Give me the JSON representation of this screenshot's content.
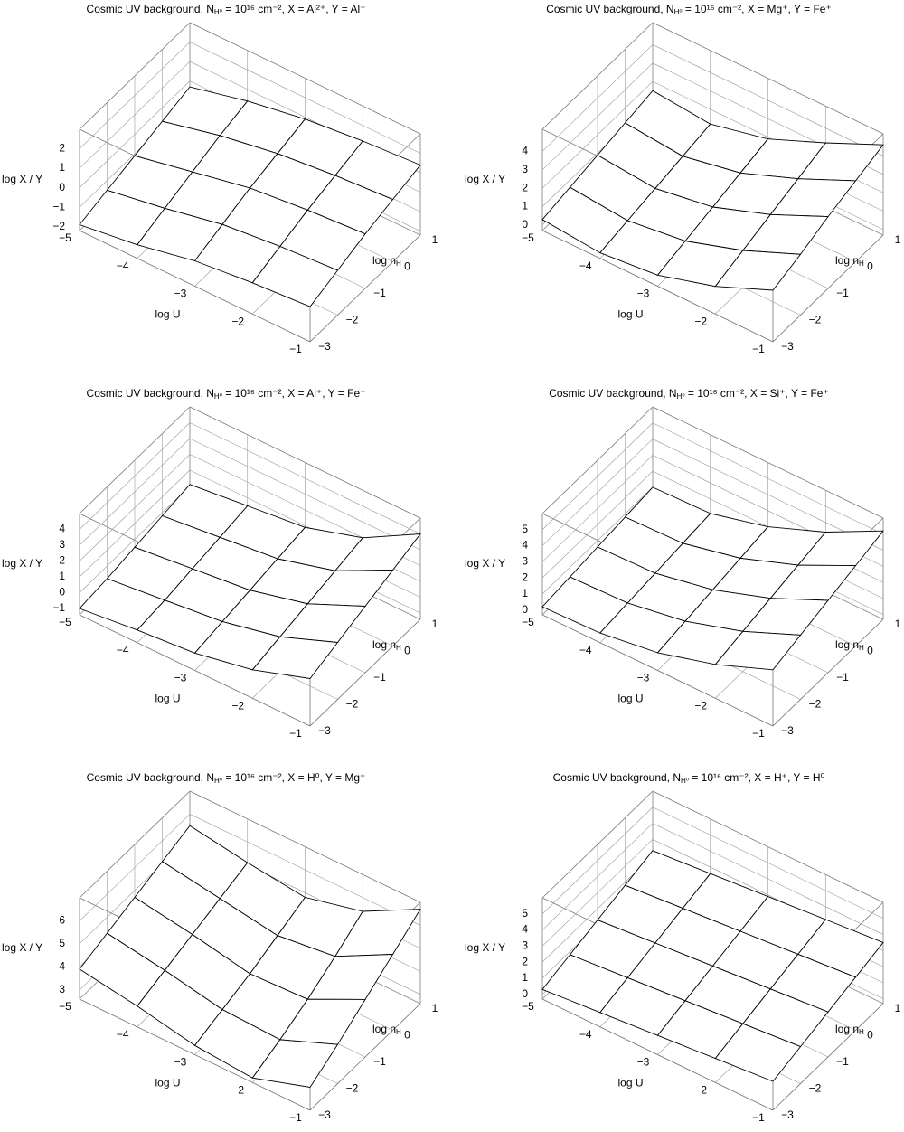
{
  "chart_data": [
    {
      "type": "surface",
      "title": [
        {
          "text": "Cosmic UV background, N"
        },
        {
          "text": "H⁰",
          "sub": true
        },
        {
          "text": " = 10¹⁶ cm⁻², X = Al²⁺, Y = Al⁺"
        }
      ],
      "xlabel": "log U",
      "ylabel": [
        {
          "text": "log n"
        },
        {
          "text": "H",
          "sub": true
        }
      ],
      "zlabel": "log X / Y",
      "x": [
        -5,
        -4,
        -3,
        -2,
        -1
      ],
      "y": [
        -3,
        -2,
        -1,
        0,
        1
      ],
      "z": [
        [
          -1.9,
          -1.5,
          -1.1,
          -0.7,
          -0.3
        ],
        [
          -1.5,
          -1.0,
          -0.5,
          0.0,
          0.4
        ],
        [
          -0.9,
          -0.4,
          0.1,
          0.5,
          0.9
        ],
        [
          -0.6,
          -0.1,
          0.4,
          0.8,
          1.2
        ],
        [
          -0.4,
          0.1,
          0.6,
          1.0,
          1.4
        ]
      ],
      "xlim": [
        -5,
        -1
      ],
      "ylim": [
        -3,
        1
      ],
      "zlim": [
        -2.2,
        3
      ],
      "xticks": [
        {
          "value": -5,
          "label": "−5"
        },
        {
          "value": -4,
          "label": "−4"
        },
        {
          "value": -3,
          "label": "−3"
        },
        {
          "value": -2,
          "label": "−2"
        },
        {
          "value": -1,
          "label": "−1"
        }
      ],
      "yticks": [
        {
          "value": -3,
          "label": "−3"
        },
        {
          "value": -2,
          "label": "−2"
        },
        {
          "value": -1,
          "label": "−1"
        },
        0,
        1
      ],
      "zticks": [
        {
          "value": -2,
          "label": "−2"
        },
        {
          "value": -1,
          "label": "−1"
        },
        0,
        1,
        2
      ],
      "grid": true,
      "color": "#ffffff"
    },
    {
      "type": "surface",
      "title": [
        {
          "text": "Cosmic UV background, N"
        },
        {
          "text": "H⁰",
          "sub": true
        },
        {
          "text": " = 10¹⁶ cm⁻², X = Mg⁺, Y = Fe⁺"
        }
      ],
      "xlabel": "log U",
      "ylabel": [
        {
          "text": "log n"
        },
        {
          "text": "H",
          "sub": true
        }
      ],
      "zlabel": "log X / Y",
      "x": [
        -5,
        -4,
        -3,
        -2,
        -1
      ],
      "y": [
        -3,
        -2,
        -1,
        0,
        1
      ],
      "z": [
        [
          0.3,
          0.6,
          0.9,
          1.2,
          1.5
        ],
        [
          0.0,
          0.3,
          0.6,
          0.9,
          1.2
        ],
        [
          0.3,
          0.7,
          1.1,
          1.5,
          1.9
        ],
        [
          1.2,
          1.7,
          2.2,
          2.7,
          3.2
        ],
        [
          2.5,
          3.0,
          3.6,
          4.1,
          4.6
        ]
      ],
      "xlim": [
        -5,
        -1
      ],
      "ylim": [
        -3,
        1
      ],
      "zlim": [
        -0.3,
        5.2
      ],
      "xticks": [
        {
          "value": -5,
          "label": "−5"
        },
        {
          "value": -4,
          "label": "−4"
        },
        {
          "value": -3,
          "label": "−3"
        },
        {
          "value": -2,
          "label": "−2"
        },
        {
          "value": -1,
          "label": "−1"
        }
      ],
      "yticks": [
        {
          "value": -3,
          "label": "−3"
        },
        {
          "value": -2,
          "label": "−2"
        },
        {
          "value": -1,
          "label": "−1"
        },
        0,
        1
      ],
      "zticks": [
        0,
        1,
        2,
        3,
        4
      ],
      "grid": true,
      "color": "#ffffff"
    },
    {
      "type": "surface",
      "title": [
        {
          "text": "Cosmic UV background, N"
        },
        {
          "text": "H⁰",
          "sub": true
        },
        {
          "text": " = 10¹⁶ cm⁻², X = Al⁺, Y = Fe⁺"
        }
      ],
      "xlabel": "log U",
      "ylabel": [
        {
          "text": "log n"
        },
        {
          "text": "H",
          "sub": true
        }
      ],
      "zlabel": "log X / Y",
      "x": [
        -5,
        -4,
        -3,
        -2,
        -1
      ],
      "y": [
        -3,
        -2,
        -1,
        0,
        1
      ],
      "z": [
        [
          -1.0,
          -0.8,
          -0.5,
          -0.2,
          0.1
        ],
        [
          -0.6,
          -0.4,
          -0.1,
          0.2,
          0.5
        ],
        [
          -0.3,
          0.0,
          0.3,
          0.6,
          0.9
        ],
        [
          0.4,
          0.8,
          1.2,
          1.6,
          2.0
        ],
        [
          1.6,
          2.2,
          2.8,
          3.4,
          4.0
        ]
      ],
      "xlim": [
        -5,
        -1
      ],
      "ylim": [
        -3,
        1
      ],
      "zlim": [
        -1.4,
        5
      ],
      "xticks": [
        {
          "value": -5,
          "label": "−5"
        },
        {
          "value": -4,
          "label": "−4"
        },
        {
          "value": -3,
          "label": "−3"
        },
        {
          "value": -2,
          "label": "−2"
        },
        {
          "value": -1,
          "label": "−1"
        }
      ],
      "yticks": [
        {
          "value": -3,
          "label": "−3"
        },
        {
          "value": -2,
          "label": "−2"
        },
        {
          "value": -1,
          "label": "−1"
        },
        0,
        1
      ],
      "zticks": [
        {
          "value": -1,
          "label": "−1"
        },
        0,
        1,
        2,
        3,
        4
      ],
      "grid": true,
      "color": "#ffffff"
    },
    {
      "type": "surface",
      "title": [
        {
          "text": "Cosmic UV background, N"
        },
        {
          "text": "H⁰",
          "sub": true
        },
        {
          "text": " = 10¹⁶ cm⁻², X = Si⁺, Y = Fe⁺"
        }
      ],
      "xlabel": "log U",
      "ylabel": [
        {
          "text": "log n"
        },
        {
          "text": "H",
          "sub": true
        }
      ],
      "zlabel": "log X / Y",
      "x": [
        -5,
        -4,
        -3,
        -2,
        -1
      ],
      "y": [
        -3,
        -2,
        -1,
        0,
        1
      ],
      "z": [
        [
          0.2,
          0.4,
          0.6,
          0.8,
          1.0
        ],
        [
          0.3,
          0.5,
          0.7,
          0.9,
          1.1
        ],
        [
          0.8,
          1.1,
          1.4,
          1.7,
          2.0
        ],
        [
          1.8,
          2.2,
          2.6,
          3.0,
          3.4
        ],
        [
          3.2,
          3.7,
          4.2,
          4.7,
          5.2
        ]
      ],
      "xlim": [
        -5,
        -1
      ],
      "ylim": [
        -3,
        1
      ],
      "zlim": [
        -0.3,
        6
      ],
      "xticks": [
        {
          "value": -5,
          "label": "−5"
        },
        {
          "value": -4,
          "label": "−4"
        },
        {
          "value": -3,
          "label": "−3"
        },
        {
          "value": -2,
          "label": "−2"
        },
        {
          "value": -1,
          "label": "−1"
        }
      ],
      "yticks": [
        {
          "value": -3,
          "label": "−3"
        },
        {
          "value": -2,
          "label": "−2"
        },
        {
          "value": -1,
          "label": "−1"
        },
        0,
        1
      ],
      "zticks": [
        0,
        1,
        2,
        3,
        4,
        5
      ],
      "grid": true,
      "color": "#ffffff"
    },
    {
      "type": "surface",
      "title": [
        {
          "text": "Cosmic UV background, N"
        },
        {
          "text": "H⁰",
          "sub": true
        },
        {
          "text": " = 10¹⁶ cm⁻², X = H⁰, Y = Mg⁺"
        }
      ],
      "xlabel": "log U",
      "ylabel": [
        {
          "text": "log n"
        },
        {
          "text": "H",
          "sub": true
        }
      ],
      "zlabel": "log X / Y",
      "x": [
        -5,
        -4,
        -3,
        -2,
        -1
      ],
      "y": [
        -3,
        -2,
        -1,
        0,
        1
      ],
      "z": [
        [
          3.9,
          4.3,
          4.7,
          5.1,
          5.5
        ],
        [
          3.5,
          3.9,
          4.3,
          4.7,
          5.1
        ],
        [
          3.0,
          3.4,
          3.8,
          4.3,
          4.8
        ],
        [
          2.8,
          3.3,
          3.9,
          4.6,
          5.4
        ],
        [
          3.6,
          4.3,
          5.1,
          5.9,
          6.7
        ]
      ],
      "xlim": [
        -5,
        -1
      ],
      "ylim": [
        -3,
        1
      ],
      "zlim": [
        2.6,
        7
      ],
      "xticks": [
        {
          "value": -5,
          "label": "−5"
        },
        {
          "value": -4,
          "label": "−4"
        },
        {
          "value": -3,
          "label": "−3"
        },
        {
          "value": -2,
          "label": "−2"
        },
        {
          "value": -1,
          "label": "−1"
        }
      ],
      "yticks": [
        {
          "value": -3,
          "label": "−3"
        },
        {
          "value": -2,
          "label": "−2"
        },
        {
          "value": -1,
          "label": "−1"
        },
        0,
        1
      ],
      "zticks": [
        3,
        4,
        5,
        6
      ],
      "grid": true,
      "color": "#ffffff"
    },
    {
      "type": "surface",
      "title": [
        {
          "text": "Cosmic UV background, N"
        },
        {
          "text": "H⁰",
          "sub": true
        },
        {
          "text": " = 10¹⁶ cm⁻², X = H⁺, Y = H⁰"
        }
      ],
      "xlabel": "log U",
      "ylabel": [
        {
          "text": "log n"
        },
        {
          "text": "H",
          "sub": true
        }
      ],
      "zlabel": "log X / Y",
      "x": [
        -5,
        -4,
        -3,
        -2,
        -1
      ],
      "y": [
        -3,
        -2,
        -1,
        0,
        1
      ],
      "z": [
        [
          0.3,
          0.8,
          1.3,
          1.8,
          2.3
        ],
        [
          0.6,
          1.1,
          1.6,
          2.1,
          2.6
        ],
        [
          0.9,
          1.4,
          1.9,
          2.4,
          2.9
        ],
        [
          1.2,
          1.7,
          2.2,
          2.7,
          3.2
        ],
        [
          1.5,
          2.0,
          2.5,
          3.0,
          3.5
        ]
      ],
      "xlim": [
        -5,
        -1
      ],
      "ylim": [
        -3,
        1
      ],
      "zlim": [
        -0.3,
        6
      ],
      "xticks": [
        {
          "value": -5,
          "label": "−5"
        },
        {
          "value": -4,
          "label": "−4"
        },
        {
          "value": -3,
          "label": "−3"
        },
        {
          "value": -2,
          "label": "−2"
        },
        {
          "value": -1,
          "label": "−1"
        }
      ],
      "yticks": [
        {
          "value": -3,
          "label": "−3"
        },
        {
          "value": -2,
          "label": "−2"
        },
        {
          "value": -1,
          "label": "−1"
        },
        0,
        1
      ],
      "zticks": [
        0,
        1,
        2,
        3,
        4,
        5
      ],
      "grid": true,
      "color": "#ffffff"
    }
  ]
}
